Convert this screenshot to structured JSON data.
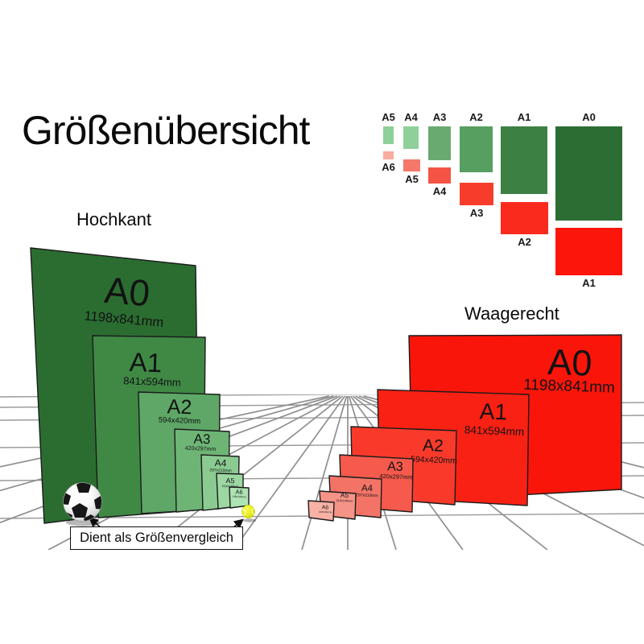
{
  "title": "Größenübersicht",
  "caption": {
    "text": "Dient als Größenvergleich"
  },
  "grid_color": "#8f8f8f",
  "minichart": {
    "columns": [
      {
        "green_label": "A5",
        "red_label": "A6",
        "green_color": "#8ed098",
        "red_color": "#f8ab9e"
      },
      {
        "green_label": "A4",
        "red_label": "A5",
        "green_color": "#8ed098",
        "red_color": "#f4796b"
      },
      {
        "green_label": "A3",
        "red_label": "A4",
        "green_color": "#68aa70",
        "red_color": "#f55445"
      },
      {
        "green_label": "A2",
        "red_label": "A3",
        "green_color": "#579e61",
        "red_color": "#f73c2c"
      },
      {
        "green_label": "A1",
        "red_label": "A2",
        "green_color": "#3c8044",
        "red_color": "#fa2b1d"
      },
      {
        "green_label": "A0",
        "red_label": "A1",
        "green_color": "#2c6d33",
        "red_color": "#fb150a"
      }
    ]
  },
  "hochkant": {
    "heading": "Hochkant",
    "boards": [
      {
        "label": "A0",
        "dims": "1198x841mm",
        "color": "#2b6d31"
      },
      {
        "label": "A1",
        "dims": "841x594mm",
        "color": "#3f8945"
      },
      {
        "label": "A2",
        "dims": "594x420mm",
        "color": "#5ea766"
      },
      {
        "label": "A3",
        "dims": "420x297mm",
        "color": "#6eb575"
      },
      {
        "label": "A4",
        "dims": "297x210mm",
        "color": "#8bcb92"
      },
      {
        "label": "A5",
        "dims": "210x148mm",
        "color": "#9dd8a3"
      },
      {
        "label": "A6",
        "dims": "148x105mm",
        "color": "#aee3b3"
      }
    ]
  },
  "waagerecht": {
    "heading": "Waagerecht",
    "boards": [
      {
        "label": "A0",
        "dims": "1198x841mm",
        "color": "#f9150a"
      },
      {
        "label": "A1",
        "dims": "841x594mm",
        "color": "#f92114"
      },
      {
        "label": "A2",
        "dims": "594x420mm",
        "color": "#f93a2b"
      },
      {
        "label": "A3",
        "dims": "420x297mm",
        "color": "#f55a4c"
      },
      {
        "label": "A4",
        "dims": "297x210mm",
        "color": "#f37467"
      },
      {
        "label": "A5",
        "dims": "210x148mm",
        "color": "#f59387"
      },
      {
        "label": "A6",
        "dims": "148x105mm",
        "color": "#f8b1a5"
      }
    ]
  },
  "balls": {
    "soccer_icon": "soccer-ball",
    "tennis_icon": "tennis-ball",
    "soccer_color": "#ffffff",
    "tennis_color": "#e7ec1c"
  }
}
